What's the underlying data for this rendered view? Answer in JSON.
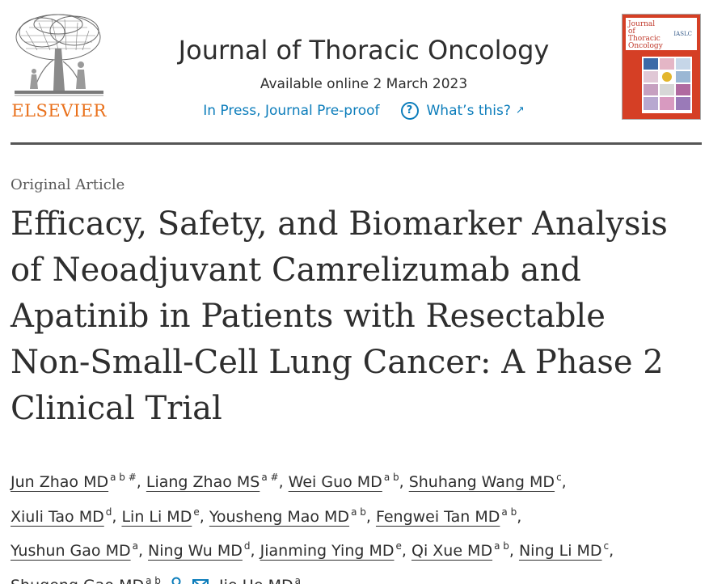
{
  "header": {
    "publisher": "ELSEVIER",
    "journal_title": "Journal of Thoracic Oncology",
    "availability": "Available online 2 March 2023",
    "status": "In Press, Journal Pre-proof",
    "help_link": "What’s this?",
    "cover": {
      "title": "Journal of Thoracic Oncology",
      "badge": "IASLC"
    }
  },
  "article": {
    "type": "Original Article",
    "title": "Efficacy, Safety, and Biomarker Analysis of Neoadjuvant Camrelizumab and Apatinib in Patients with Resectable Non-Small-Cell Lung Cancer: A Phase 2 Clinical Trial"
  },
  "authors": [
    {
      "name": "Jun Zhao MD",
      "aff": "a b #"
    },
    {
      "name": "Liang Zhao MS",
      "aff": "a #"
    },
    {
      "name": "Wei Guo MD",
      "aff": "a b"
    },
    {
      "name": "Shuhang Wang MD",
      "aff": "c"
    },
    {
      "name": "Xiuli Tao MD",
      "aff": "d"
    },
    {
      "name": "Lin Li MD",
      "aff": "e"
    },
    {
      "name": "Yousheng Mao MD",
      "aff": "a b"
    },
    {
      "name": "Fengwei Tan MD",
      "aff": "a b"
    },
    {
      "name": "Yushun Gao MD",
      "aff": "a"
    },
    {
      "name": "Ning Wu MD",
      "aff": "d"
    },
    {
      "name": "Jianming Ying MD",
      "aff": "e"
    },
    {
      "name": "Qi Xue MD",
      "aff": "a b"
    },
    {
      "name": "Ning Li MD",
      "aff": "c"
    },
    {
      "name": "Shugeng Gao MD",
      "aff": "a b"
    },
    {
      "name": "Jie He MD",
      "aff": "a"
    }
  ],
  "icons": {
    "person": "person-icon",
    "mail": "mail-icon",
    "help": "help-circle-icon",
    "external": "external-link-icon"
  },
  "colors": {
    "publisher_orange": "#e9711c",
    "link_blue": "#0c7dbb",
    "cover_red": "#d53f25"
  }
}
